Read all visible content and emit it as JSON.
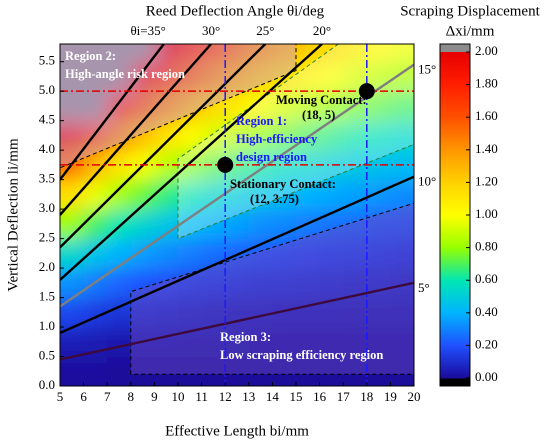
{
  "chart_data": {
    "type": "heatmap",
    "title": "Reed Deflection Angle θi/deg",
    "xlabel": "Effective Length bi/mm",
    "ylabel": "Vertical Deflection li/mm",
    "xlim": [
      5,
      20
    ],
    "ylim": [
      0,
      5.8
    ],
    "xticks": [
      5,
      6,
      7,
      8,
      9,
      10,
      11,
      12,
      13,
      14,
      15,
      16,
      17,
      18,
      19,
      20
    ],
    "yticks": [
      {
        "value": 0,
        "label": "0.0"
      },
      0.5,
      {
        "value": 1,
        "label": "1.0"
      },
      1.5,
      {
        "value": 2,
        "label": "2.0"
      },
      2.5,
      {
        "value": 3,
        "label": "3.0"
      },
      3.5,
      {
        "value": 4,
        "label": "4.0"
      },
      4.5,
      {
        "value": 5,
        "label": "5.0"
      },
      5.5
    ],
    "x_edges": [
      5,
      6,
      7,
      8,
      9,
      10,
      11,
      12,
      13,
      14,
      15,
      16,
      17,
      18,
      19,
      20
    ],
    "y_edges": [
      0,
      0.5,
      1,
      1.5,
      2,
      2.5,
      3,
      3.5,
      4,
      4.5,
      5,
      5.5,
      5.8
    ],
    "z": [
      [
        0.01,
        0.01,
        0.0,
        0.0,
        0.0,
        0.0,
        0.0,
        0.0,
        0.0,
        0.0,
        0.0,
        0.0,
        0.0,
        0.0,
        0.0
      ],
      [
        0.06,
        0.05,
        0.04,
        0.04,
        0.04,
        0.03,
        0.03,
        0.03,
        0.02,
        0.02,
        0.02,
        0.02,
        0.02,
        0.02,
        0.02
      ],
      [
        0.17,
        0.14,
        0.12,
        0.11,
        0.1,
        0.09,
        0.08,
        0.07,
        0.07,
        0.06,
        0.06,
        0.06,
        0.05,
        0.05,
        0.05
      ],
      [
        0.33,
        0.28,
        0.24,
        0.21,
        0.19,
        0.17,
        0.16,
        0.15,
        0.13,
        0.13,
        0.12,
        0.11,
        0.1,
        0.1,
        0.09
      ],
      [
        0.54,
        0.46,
        0.4,
        0.35,
        0.32,
        0.29,
        0.26,
        0.24,
        0.22,
        0.21,
        0.19,
        0.18,
        0.17,
        0.16,
        0.15
      ],
      [
        0.81,
        0.69,
        0.6,
        0.53,
        0.47,
        0.43,
        0.39,
        0.36,
        0.33,
        0.31,
        0.29,
        0.27,
        0.26,
        0.24,
        0.23
      ],
      [
        1.14,
        0.96,
        0.83,
        0.74,
        0.66,
        0.6,
        0.54,
        0.5,
        0.46,
        0.43,
        0.4,
        0.38,
        0.36,
        0.34,
        0.32
      ],
      [
        1.51,
        1.28,
        1.11,
        0.98,
        0.88,
        0.79,
        0.72,
        0.67,
        0.62,
        0.57,
        0.54,
        0.5,
        0.48,
        0.45,
        0.43
      ],
      [
        1.94,
        1.64,
        1.43,
        1.26,
        1.13,
        1.02,
        0.93,
        0.86,
        0.79,
        0.74,
        0.69,
        0.65,
        0.61,
        0.58,
        0.55
      ],
      [
        2.43,
        2.06,
        1.78,
        1.57,
        1.41,
        1.27,
        1.16,
        1.07,
        0.99,
        0.92,
        0.86,
        0.81,
        0.76,
        0.72,
        0.69
      ],
      [
        2.97,
        2.51,
        2.18,
        1.92,
        1.72,
        1.55,
        1.42,
        1.31,
        1.21,
        1.13,
        1.05,
        0.99,
        0.93,
        0.88,
        0.84
      ],
      [
        3.44,
        2.91,
        2.52,
        2.22,
        1.99,
        1.8,
        1.64,
        1.51,
        1.4,
        1.3,
        1.22,
        1.15,
        1.08,
        1.02,
        0.97
      ]
    ],
    "colorbar": {
      "title": "Scraping Displacement",
      "unit": "Δxi/mm",
      "ticks": [
        {
          "value": 0,
          "label": "0.00"
        },
        {
          "value": 0.2,
          "label": "0.20"
        },
        {
          "value": 0.4,
          "label": "0.40"
        },
        {
          "value": 0.6,
          "label": "0.60"
        },
        {
          "value": 0.8,
          "label": "0.80"
        },
        {
          "value": 1,
          "label": "1.00"
        },
        {
          "value": 1.2,
          "label": "1.20"
        },
        {
          "value": 1.4,
          "label": "1.40"
        },
        {
          "value": 1.6,
          "label": "1.60"
        },
        {
          "value": 1.8,
          "label": "1.80"
        },
        {
          "value": 2,
          "label": "2.00"
        }
      ],
      "colors": [
        "#1a0a9a",
        "#2050ff",
        "#00b4ff",
        "#00e6b4",
        "#96ff00",
        "#ffff00",
        "#ffd200",
        "#ff9600",
        "#ff5000",
        "#ff1e00",
        "#e60000"
      ],
      "under_color": "#000000",
      "over_color": "#8c8c8c"
    },
    "angle_lines": [
      {
        "label": "θi=35°",
        "b": [
          5,
          9.4
        ],
        "l": [
          3.5,
          5.8
        ],
        "color": "#000000",
        "label_side": "top"
      },
      {
        "label": "30°",
        "b": [
          5,
          11.4
        ],
        "l": [
          2.9,
          5.8
        ],
        "color": "#000000",
        "label_side": "top"
      },
      {
        "label": "25°",
        "b": [
          5,
          13.7
        ],
        "l": [
          2.35,
          5.8
        ],
        "color": "#000000",
        "label_side": "top"
      },
      {
        "label": "20°",
        "b": [
          5,
          16.1
        ],
        "l": [
          1.8,
          5.8
        ],
        "color": "#000000",
        "label_side": "top"
      },
      {
        "label": "15°",
        "b": [
          5,
          20
        ],
        "l": [
          1.35,
          5.45
        ],
        "color": "#7f7f7f",
        "label_side": "right"
      },
      {
        "label": "10°",
        "b": [
          5,
          20
        ],
        "l": [
          0.9,
          3.55
        ],
        "color": "#000000",
        "label_side": "right"
      },
      {
        "label": "5°",
        "b": [
          5,
          20
        ],
        "l": [
          0.45,
          1.75
        ],
        "color": "#3c0a3c",
        "label_side": "right"
      }
    ],
    "regions": [
      {
        "b": [
          5,
          5,
          15,
          15
        ],
        "l": [
          3.7,
          5.8,
          5.8,
          5.35
        ],
        "fill": "#c8a0d8",
        "stroke": "#000000"
      },
      {
        "b": [
          10,
          10,
          16.8,
          20,
          20
        ],
        "l": [
          2.5,
          3.85,
          5.8,
          5.8,
          4.1
        ],
        "fill": "#ffffff",
        "stroke": "#2e7d32"
      },
      {
        "b": [
          8,
          8,
          20,
          20
        ],
        "l": [
          0.2,
          1.6,
          3.1,
          0.2
        ],
        "fill": "#6a4cc0",
        "stroke": "#000000"
      }
    ],
    "h_lines": [
      5,
      3.75
    ],
    "v_lines": [
      12,
      18
    ],
    "points": [
      {
        "b": 12,
        "l": 3.75
      },
      {
        "b": 18,
        "l": 5
      }
    ],
    "annotations": {
      "region2": [
        "Region 2:",
        "High-angle risk region"
      ],
      "region1": [
        "Region 1:",
        "High-efficiency",
        "design region"
      ],
      "moving": [
        "Moving Contact:",
        "(18, 5)"
      ],
      "stationary": [
        "Stationary Contact:",
        "(12, 3.75)"
      ],
      "region3": [
        "Region 3:",
        "Low scraping efficiency region"
      ]
    }
  }
}
